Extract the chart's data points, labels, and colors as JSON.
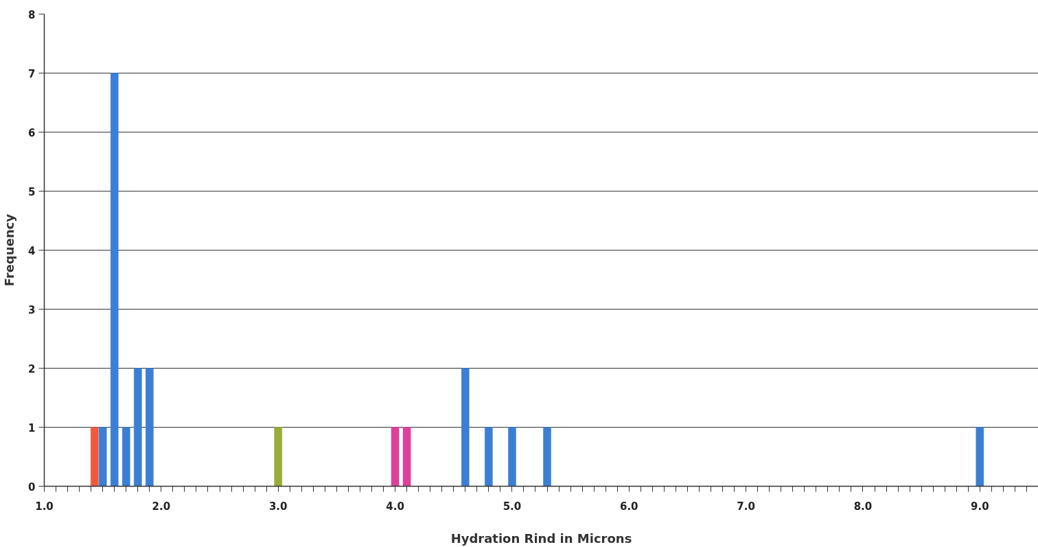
{
  "chart_data": {
    "type": "bar",
    "xlabel": "Hydration Rind in Microns",
    "ylabel": "Frequency",
    "x": [
      1.43,
      1.5,
      1.6,
      1.7,
      1.8,
      1.9,
      3.0,
      4.0,
      4.1,
      4.6,
      4.8,
      5.0,
      5.3,
      9.0
    ],
    "values": [
      1,
      1,
      7,
      1,
      2,
      2,
      1,
      1,
      1,
      2,
      1,
      1,
      1,
      1
    ],
    "colors": [
      "#f05a3c",
      "#3a7fd5",
      "#3a7fd5",
      "#3a7fd5",
      "#3a7fd5",
      "#3a7fd5",
      "#9aab3a",
      "#e0409a",
      "#e0409a",
      "#3a7fd5",
      "#3a7fd5",
      "#3a7fd5",
      "#3a7fd5",
      "#3a7fd5"
    ],
    "xlim": [
      1.0,
      9.5
    ],
    "ylim": [
      0,
      8
    ],
    "yticks": [
      0,
      1,
      2,
      3,
      4,
      5,
      6,
      7,
      8
    ],
    "xticks": [
      {
        "value": 1.0,
        "label": "1.0"
      },
      {
        "value": 2.0,
        "label": "2.0"
      },
      {
        "value": 3.0,
        "label": "3.0"
      },
      {
        "value": 4.0,
        "label": "4.0"
      },
      {
        "value": 5.0,
        "label": "5.0"
      },
      {
        "value": 6.0,
        "label": "6.0"
      },
      {
        "value": 7.0,
        "label": "7.0"
      },
      {
        "value": 8.0,
        "label": "8.0"
      },
      {
        "value": 9.0,
        "label": "9.0"
      },
      {
        "value": 1.1,
        "label": null
      },
      {
        "value": 1.2,
        "label": null
      },
      {
        "value": 1.3,
        "label": null
      },
      {
        "value": 1.4,
        "label": null
      },
      {
        "value": 1.5,
        "label": null
      },
      {
        "value": 1.6,
        "label": null
      },
      {
        "value": 1.7,
        "label": null
      },
      {
        "value": 1.8,
        "label": null
      },
      {
        "value": 1.9,
        "label": null
      },
      {
        "value": 2.1,
        "label": null
      },
      {
        "value": 2.2,
        "label": null
      },
      {
        "value": 2.3,
        "label": null
      },
      {
        "value": 2.4,
        "label": null
      },
      {
        "value": 2.5,
        "label": null
      },
      {
        "value": 2.6,
        "label": null
      },
      {
        "value": 2.7,
        "label": null
      },
      {
        "value": 2.8,
        "label": null
      },
      {
        "value": 2.9,
        "label": null
      },
      {
        "value": 3.1,
        "label": null
      },
      {
        "value": 3.2,
        "label": null
      },
      {
        "value": 3.3,
        "label": null
      },
      {
        "value": 3.4,
        "label": null
      },
      {
        "value": 3.5,
        "label": null
      },
      {
        "value": 3.6,
        "label": null
      },
      {
        "value": 3.7,
        "label": null
      },
      {
        "value": 3.8,
        "label": null
      },
      {
        "value": 3.9,
        "label": null
      },
      {
        "value": 4.1,
        "label": null
      },
      {
        "value": 4.2,
        "label": null
      },
      {
        "value": 4.3,
        "label": null
      },
      {
        "value": 4.4,
        "label": null
      },
      {
        "value": 4.5,
        "label": null
      },
      {
        "value": 4.6,
        "label": null
      },
      {
        "value": 4.7,
        "label": null
      },
      {
        "value": 4.8,
        "label": null
      },
      {
        "value": 4.9,
        "label": null
      },
      {
        "value": 5.1,
        "label": null
      },
      {
        "value": 5.2,
        "label": null
      },
      {
        "value": 5.3,
        "label": null
      },
      {
        "value": 5.4,
        "label": null
      },
      {
        "value": 5.5,
        "label": null
      },
      {
        "value": 5.6,
        "label": null
      },
      {
        "value": 5.7,
        "label": null
      },
      {
        "value": 5.8,
        "label": null
      },
      {
        "value": 5.9,
        "label": null
      },
      {
        "value": 6.1,
        "label": null
      },
      {
        "value": 6.2,
        "label": null
      },
      {
        "value": 6.3,
        "label": null
      },
      {
        "value": 6.4,
        "label": null
      },
      {
        "value": 6.5,
        "label": null
      },
      {
        "value": 6.6,
        "label": null
      },
      {
        "value": 6.7,
        "label": null
      },
      {
        "value": 6.8,
        "label": null
      },
      {
        "value": 6.9,
        "label": null
      },
      {
        "value": 7.1,
        "label": null
      },
      {
        "value": 7.2,
        "label": null
      },
      {
        "value": 7.3,
        "label": null
      },
      {
        "value": 7.4,
        "label": null
      },
      {
        "value": 7.5,
        "label": null
      },
      {
        "value": 7.6,
        "label": null
      },
      {
        "value": 7.7,
        "label": null
      },
      {
        "value": 7.8,
        "label": null
      },
      {
        "value": 7.9,
        "label": null
      },
      {
        "value": 8.1,
        "label": null
      },
      {
        "value": 8.2,
        "label": null
      },
      {
        "value": 8.3,
        "label": null
      },
      {
        "value": 8.4,
        "label": null
      },
      {
        "value": 8.5,
        "label": null
      },
      {
        "value": 8.6,
        "label": null
      },
      {
        "value": 8.7,
        "label": null
      },
      {
        "value": 8.8,
        "label": null
      },
      {
        "value": 8.9,
        "label": null
      },
      {
        "value": 9.1,
        "label": null
      },
      {
        "value": 9.2,
        "label": null
      },
      {
        "value": 9.3,
        "label": null
      },
      {
        "value": 9.4,
        "label": null
      }
    ],
    "grid": "y"
  }
}
